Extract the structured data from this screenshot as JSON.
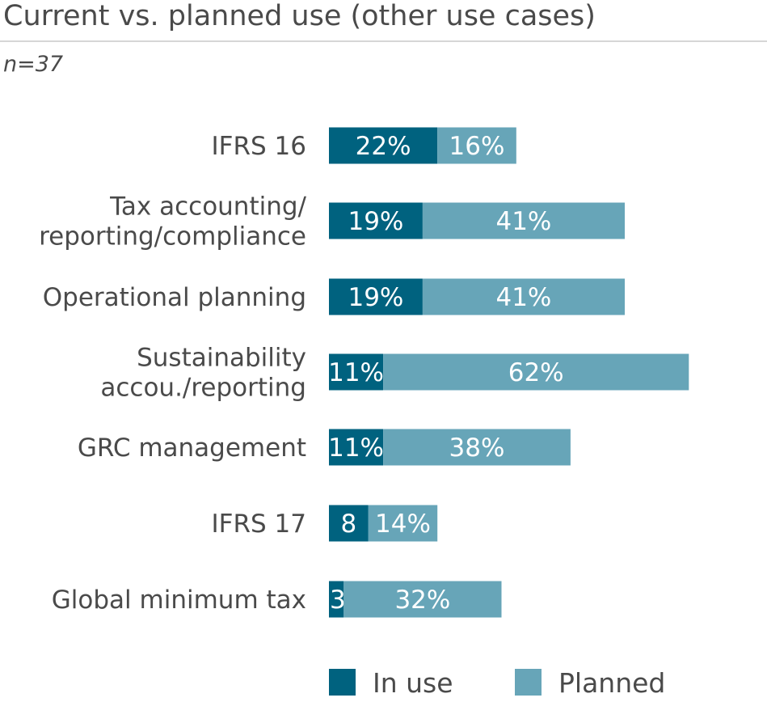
{
  "chart_data": {
    "type": "bar",
    "stacked": true,
    "orientation": "horizontal",
    "title": "Current vs. planned use (other use cases)",
    "subtitle": "n=37",
    "categories": [
      [
        "IFRS 16"
      ],
      [
        "Tax accounting/",
        "reporting/compliance"
      ],
      [
        "Operational planning"
      ],
      [
        "Sustainability",
        "accou./reporting"
      ],
      [
        "GRC management"
      ],
      [
        "IFRS 17"
      ],
      [
        "Global minimum tax"
      ]
    ],
    "series": [
      {
        "name": "In use",
        "color": "#00627f",
        "values": [
          22,
          19,
          19,
          11,
          11,
          8,
          3
        ],
        "labels": [
          "22%",
          "19%",
          "19%",
          "11%",
          "11%",
          "8",
          "3"
        ]
      },
      {
        "name": "Planned",
        "color": "#67a5b8",
        "values": [
          16,
          41,
          41,
          62,
          38,
          14,
          32
        ],
        "labels": [
          "16%",
          "41%",
          "41%",
          "62%",
          "38%",
          "14%",
          "32%"
        ]
      }
    ],
    "unit": "%",
    "legend": "bottom"
  }
}
